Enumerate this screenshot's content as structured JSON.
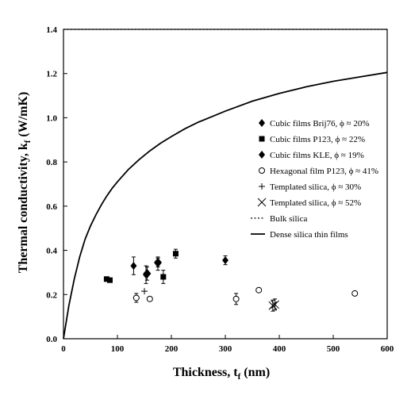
{
  "chart_data": {
    "type": "scatter",
    "xlabel": "Thickness, t",
    "xlabel_sub": "f",
    "xlabel_unit": " (nm)",
    "ylabel": "Thermal conductivity, k",
    "ylabel_sub": "f",
    "ylabel_unit": " (W/mK)",
    "xlim": [
      0,
      600
    ],
    "ylim": [
      0.0,
      1.4
    ],
    "x_ticks": [
      "0",
      "100",
      "200",
      "300",
      "400",
      "500",
      "600"
    ],
    "y_ticks": [
      "0.0",
      "0.2",
      "0.4",
      "0.6",
      "0.8",
      "1.0",
      "1.2",
      "1.4"
    ],
    "grid": false,
    "legend_position": "right",
    "series": [
      {
        "name": "Cubic films Brij76, ϕ ≈ 20%",
        "marker": "diamond",
        "points": [
          {
            "x": 130,
            "y": 0.33,
            "err": 0.04
          },
          {
            "x": 153,
            "y": 0.29,
            "err": 0.04
          },
          {
            "x": 175,
            "y": 0.34,
            "err": 0.03
          },
          {
            "x": 300,
            "y": 0.355,
            "err": 0.02
          }
        ]
      },
      {
        "name": "Cubic films P123, ϕ ≈ 22%",
        "marker": "square",
        "points": [
          {
            "x": 80,
            "y": 0.27,
            "err": 0.0
          },
          {
            "x": 86,
            "y": 0.265,
            "err": 0.0
          },
          {
            "x": 185,
            "y": 0.28,
            "err": 0.03
          },
          {
            "x": 208,
            "y": 0.385,
            "err": 0.02
          }
        ]
      },
      {
        "name": "Cubic films KLE, ϕ ≈ 19%",
        "marker": "diamond-large",
        "points": [
          {
            "x": 155,
            "y": 0.295,
            "err": 0.03
          },
          {
            "x": 175,
            "y": 0.345,
            "err": 0.02
          }
        ]
      },
      {
        "name": "Hexagonal film P123, ϕ ≈ 41%",
        "marker": "circle-open",
        "points": [
          {
            "x": 135,
            "y": 0.185,
            "err": 0.02
          },
          {
            "x": 160,
            "y": 0.18,
            "err": 0.0
          },
          {
            "x": 320,
            "y": 0.18,
            "err": 0.025
          },
          {
            "x": 362,
            "y": 0.22,
            "err": 0.0
          },
          {
            "x": 540,
            "y": 0.205,
            "err": 0.0
          }
        ]
      },
      {
        "name": "Templated silica, ϕ ≈ 30%",
        "marker": "plus",
        "points": [
          {
            "x": 150,
            "y": 0.215,
            "err": 0.0
          }
        ]
      },
      {
        "name": "Templated silica, ϕ ≈ 52%",
        "marker": "cross",
        "points": [
          {
            "x": 388,
            "y": 0.15,
            "err": 0.025
          },
          {
            "x": 392,
            "y": 0.155,
            "err": 0.025
          }
        ]
      },
      {
        "name": "Bulk silica",
        "marker": "dotted-line",
        "line": {
          "x": [
            0,
            600
          ],
          "y": [
            1.4,
            1.4
          ]
        }
      },
      {
        "name": "Dense silica thin films",
        "marker": "solid-line",
        "line": {
          "x": [
            0,
            10,
            20,
            30,
            40,
            50,
            60,
            70,
            80,
            90,
            100,
            120,
            140,
            160,
            180,
            200,
            225,
            250,
            275,
            300,
            350,
            400,
            450,
            500,
            550,
            600
          ],
          "y": [
            0.0,
            0.15,
            0.27,
            0.37,
            0.45,
            0.51,
            0.56,
            0.605,
            0.645,
            0.68,
            0.71,
            0.765,
            0.81,
            0.85,
            0.885,
            0.915,
            0.95,
            0.98,
            1.005,
            1.03,
            1.075,
            1.11,
            1.14,
            1.165,
            1.185,
            1.205
          ]
        }
      }
    ]
  }
}
